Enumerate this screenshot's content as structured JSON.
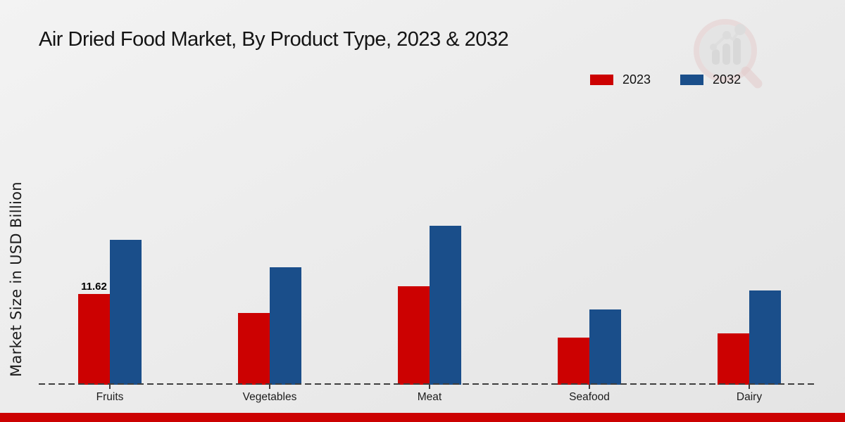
{
  "title": "Air Dried Food Market, By Product Type, 2023 & 2032",
  "ylabel": "Market Size in USD Billion",
  "legend": [
    {
      "label": "2023",
      "color": "#cc0101"
    },
    {
      "label": "2032",
      "color": "#1a4e8a"
    }
  ],
  "colors": {
    "series_2023": "#cc0101",
    "series_2032": "#1a4e8a",
    "footer_bar": "#cc0101",
    "axis_dash": "#3e3e3e"
  },
  "icons": {
    "watermark": "magnifier-bar-chart-logo"
  },
  "chart_data": {
    "type": "bar",
    "categories": [
      "Fruits",
      "Vegetables",
      "Meat",
      "Seafood",
      "Dairy"
    ],
    "series": [
      {
        "name": "2023",
        "color": "#cc0101",
        "values": [
          11.62,
          9.2,
          12.6,
          6.0,
          6.6
        ]
      },
      {
        "name": "2032",
        "color": "#1a4e8a",
        "values": [
          18.6,
          15.0,
          20.4,
          9.6,
          12.1
        ]
      }
    ],
    "data_labels": [
      {
        "category": "Fruits",
        "series": "2023",
        "text": "11.62"
      }
    ],
    "title": "Air Dried Food Market, By Product Type, 2023 & 2032",
    "xlabel": "",
    "ylabel": "Market Size in USD Billion",
    "ylim": [
      0,
      22
    ],
    "grid": false,
    "legend_position": "top-right",
    "baseline_style": "dashed"
  }
}
